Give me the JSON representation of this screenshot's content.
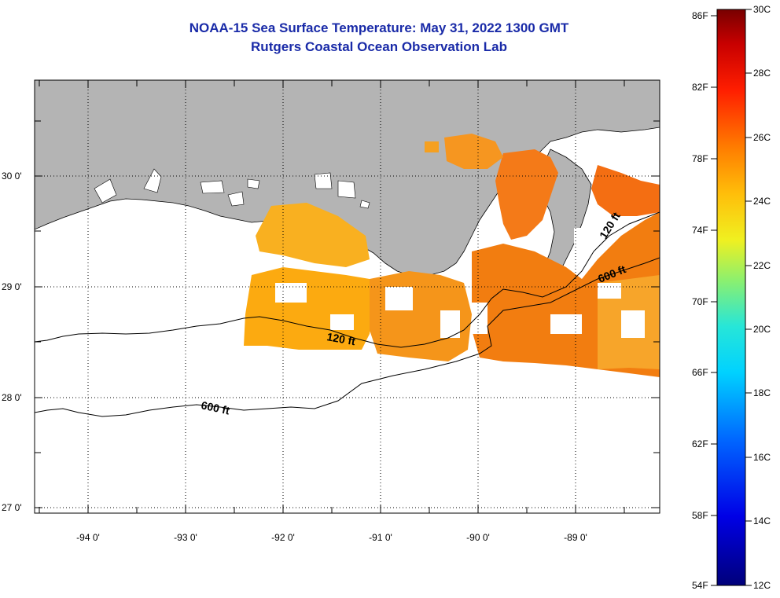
{
  "header": {
    "title": "NOAA-15 Sea Surface Temperature:  May 31, 2022 1300 GMT",
    "subtitle": "Rutgers Coastal Ocean Observation Lab"
  },
  "map": {
    "lat_labels": [
      "30 0'",
      "29 0'",
      "28 0'",
      "27 0'"
    ],
    "lon_labels": [
      "-94 0'",
      "-93 0'",
      "-92 0'",
      "-91 0'",
      "-90 0'",
      "-89 0'"
    ],
    "contour_labels": [
      "120 ft",
      "600 ft",
      "120 ft",
      "600 ft"
    ],
    "land_color": "#b4b4b4",
    "no_data_color": "#ffffff"
  },
  "colorbar": {
    "f_labels": [
      "86F",
      "82F",
      "78F",
      "74F",
      "70F",
      "66F",
      "62F",
      "58F",
      "54F"
    ],
    "c_labels": [
      "30C",
      "28C",
      "26C",
      "24C",
      "22C",
      "20C",
      "18C",
      "16C",
      "14C",
      "12C"
    ]
  }
}
